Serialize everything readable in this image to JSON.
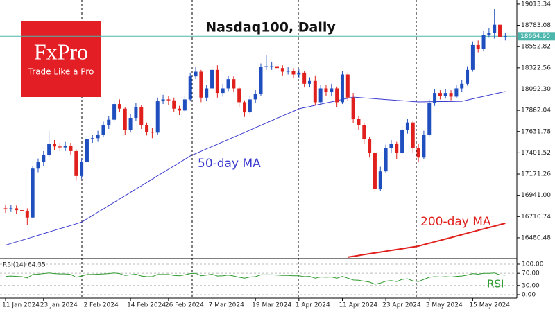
{
  "logo": {
    "name": "FxPro",
    "tagline": "Trade Like a Pro"
  },
  "chart_data": [
    {
      "type": "candlestick",
      "title": "Nasdaq100, Daily",
      "categories": [
        "11 Jan 2024",
        null,
        null,
        null,
        null,
        null,
        null,
        "23 Jan 2024",
        null,
        null,
        null,
        null,
        null,
        null,
        null,
        "2 Feb 2024",
        null,
        null,
        null,
        null,
        null,
        null,
        null,
        "14 Feb 2024",
        null,
        null,
        null,
        null,
        null,
        null,
        "26 Feb 2024",
        null,
        null,
        null,
        null,
        null,
        null,
        null,
        "7 Mar 2024",
        null,
        null,
        null,
        null,
        null,
        null,
        null,
        "19 Mar 2024",
        null,
        null,
        null,
        null,
        null,
        null,
        null,
        "1 Apr 2024",
        null,
        null,
        null,
        null,
        null,
        null,
        null,
        "11 Apr 2024",
        null,
        null,
        null,
        null,
        null,
        null,
        null,
        "23 Apr 2024",
        null,
        null,
        null,
        null,
        null,
        null,
        null,
        "3 May 2024",
        null,
        null,
        null,
        null,
        null,
        null,
        null,
        "15 May 2024",
        null,
        null,
        null,
        null,
        null,
        null
      ],
      "open": [
        16800,
        16790,
        16800,
        16780,
        16770,
        16700,
        17230,
        17300,
        17380,
        17500,
        17470,
        17460,
        17480,
        17420,
        17150,
        17300,
        17550,
        17560,
        17600,
        17700,
        17760,
        17930,
        17880,
        17650,
        17780,
        17900,
        17700,
        17630,
        17620,
        17960,
        17980,
        17970,
        17880,
        17860,
        17980,
        18230,
        18280,
        18000,
        18100,
        18300,
        18050,
        18100,
        18200,
        18100,
        17950,
        17840,
        17980,
        18040,
        18330,
        18340,
        18340,
        18320,
        18280,
        18290,
        18250,
        18270,
        18150,
        18180,
        17950,
        18100,
        18060,
        18100,
        17950,
        18250,
        18000,
        17770,
        17700,
        17550,
        17400,
        17010,
        17200,
        17450,
        17500,
        17400,
        17650,
        17730,
        17450,
        17350,
        17600,
        17940,
        18050,
        18020,
        18050,
        18010,
        18100,
        18150,
        18300,
        18570,
        18530,
        18680,
        18700,
        18790,
        18660
      ],
      "high": [
        16840,
        16840,
        16830,
        16820,
        16800,
        17260,
        17340,
        17420,
        17640,
        17540,
        17510,
        17520,
        17510,
        17440,
        17340,
        17590,
        17600,
        17640,
        17740,
        17800,
        17970,
        17980,
        17900,
        17820,
        17940,
        17920,
        17730,
        17670,
        18000,
        18030,
        18020,
        18000,
        17910,
        18020,
        18270,
        18330,
        18300,
        18140,
        18340,
        18350,
        18150,
        18240,
        18230,
        18120,
        17970,
        18020,
        18080,
        18370,
        18460,
        18390,
        18370,
        18350,
        18330,
        18320,
        18310,
        18290,
        18220,
        18240,
        18140,
        18140,
        18150,
        18120,
        18290,
        18270,
        18050,
        17800,
        17730,
        17570,
        17420,
        17250,
        17490,
        17540,
        17520,
        17690,
        17770,
        17750,
        17500,
        17640,
        17980,
        18090,
        18080,
        18090,
        18080,
        18140,
        18190,
        18340,
        18610,
        18620,
        18720,
        18750,
        18960,
        18810,
        18700
      ],
      "low": [
        16750,
        16760,
        16740,
        16720,
        16620,
        16690,
        17190,
        17260,
        17350,
        17430,
        17420,
        17420,
        17380,
        17100,
        17120,
        17280,
        17510,
        17520,
        17570,
        17660,
        17740,
        17840,
        17600,
        17620,
        17750,
        17660,
        17590,
        17560,
        17600,
        17930,
        17920,
        17840,
        17810,
        17840,
        17960,
        18200,
        17950,
        17960,
        18080,
        18000,
        18010,
        18070,
        18060,
        17900,
        17790,
        17820,
        17940,
        18020,
        18300,
        18300,
        18280,
        18240,
        18250,
        18210,
        18210,
        18110,
        18110,
        17920,
        17930,
        18020,
        18020,
        17900,
        17930,
        17960,
        17720,
        17650,
        17500,
        17350,
        16980,
        16990,
        17180,
        17400,
        17330,
        17380,
        17610,
        17400,
        17300,
        17330,
        17580,
        17910,
        17980,
        17990,
        17970,
        17990,
        18060,
        18130,
        18280,
        18490,
        18500,
        18650,
        18640,
        18570,
        18620
      ],
      "close": [
        16790,
        16800,
        16780,
        16770,
        16700,
        17230,
        17300,
        17380,
        17500,
        17470,
        17460,
        17480,
        17420,
        17150,
        17300,
        17550,
        17560,
        17600,
        17700,
        17760,
        17930,
        17880,
        17650,
        17780,
        17900,
        17700,
        17630,
        17620,
        17960,
        17980,
        17970,
        17880,
        17860,
        17980,
        18230,
        18280,
        18000,
        18100,
        18300,
        18050,
        18100,
        18200,
        18100,
        17950,
        17840,
        17980,
        18040,
        18330,
        18340,
        18340,
        18320,
        18280,
        18290,
        18250,
        18270,
        18150,
        18180,
        17950,
        18100,
        18060,
        18100,
        17950,
        18250,
        18000,
        17770,
        17700,
        17550,
        17400,
        17010,
        17200,
        17450,
        17500,
        17400,
        17650,
        17730,
        17450,
        17350,
        17600,
        17940,
        18050,
        18020,
        18050,
        18010,
        18100,
        18150,
        18300,
        18570,
        18530,
        18680,
        18700,
        18790,
        18660,
        18664.9
      ],
      "up_color": "#1f4fbf",
      "down_color": "#e0201c",
      "series": [
        {
          "name": "50-day MA",
          "color": "#3a3ad0",
          "values": [
            16400,
            16418,
            16436,
            16454,
            16471,
            16489,
            16507,
            16525,
            16543,
            16561,
            16579,
            16596,
            16614,
            16632,
            16650,
            16686,
            16722,
            16758,
            16793,
            16829,
            16865,
            16901,
            16937,
            16973,
            17009,
            17044,
            17080,
            17116,
            17152,
            17188,
            17224,
            17259,
            17295,
            17331,
            17367,
            17393,
            17418,
            17444,
            17469,
            17495,
            17520,
            17546,
            17571,
            17597,
            17622,
            17648,
            17674,
            17699,
            17725,
            17750,
            17776,
            17801,
            17827,
            17852,
            17878,
            17891,
            17903,
            17916,
            17929,
            17942,
            17954,
            17967,
            17980,
            17992,
            18005,
            18001,
            17996,
            17992,
            17988,
            17983,
            17979,
            17975,
            17970,
            17966,
            17962,
            17957,
            17953,
            17954,
            17955,
            17956,
            17957,
            17957,
            17958,
            17959,
            17960,
            17973,
            17987,
            18000,
            18013,
            18026,
            18040,
            18053,
            18066
          ]
        },
        {
          "name": "200-day MA",
          "color": "#e0201c",
          "values": [
            null,
            null,
            null,
            null,
            null,
            null,
            null,
            null,
            null,
            null,
            null,
            null,
            null,
            null,
            null,
            null,
            null,
            null,
            null,
            null,
            null,
            null,
            null,
            null,
            null,
            null,
            null,
            null,
            null,
            null,
            null,
            null,
            null,
            null,
            null,
            null,
            null,
            null,
            null,
            null,
            null,
            null,
            null,
            null,
            null,
            null,
            null,
            null,
            null,
            null,
            null,
            null,
            null,
            null,
            null,
            null,
            null,
            null,
            null,
            null,
            null,
            null,
            null,
            16270,
            16279,
            16288,
            16298,
            16307,
            16316,
            16325,
            16335,
            16344,
            16353,
            16362,
            16372,
            16381,
            16390,
            16406,
            16421,
            16437,
            16452,
            16468,
            16483,
            16499,
            16514,
            16530,
            16545,
            16561,
            16576,
            16592,
            16607,
            16623,
            16638
          ]
        }
      ],
      "last_price": {
        "value": 18664.9,
        "label": "18664.90"
      },
      "last_price_color": "#4db6ac",
      "ylim": [
        16262,
        19058
      ],
      "yticks": [
        19013.34,
        18783.08,
        18552.82,
        18322.56,
        {
          "value": 18092.3,
          "label": "18092.30"
        },
        17862.04,
        17631.78,
        17401.52,
        17171.26,
        {
          "value": 16941,
          "label": "16941.00"
        },
        16710.74,
        16480.48
      ]
    },
    {
      "type": "line",
      "title": "RSI(14) 64.35",
      "series": [
        {
          "name": "RSI",
          "color": "#2e9a2e",
          "values": [
            60,
            61,
            60,
            59,
            55,
            66,
            67,
            69,
            71,
            69,
            68,
            68,
            66,
            57,
            61,
            66,
            66,
            67,
            68,
            69,
            71,
            69,
            63,
            65,
            67,
            61,
            59,
            59,
            66,
            66,
            66,
            63,
            62,
            65,
            69,
            70,
            62,
            64,
            67,
            61,
            62,
            64,
            61,
            57,
            54,
            58,
            59,
            65,
            65,
            65,
            64,
            63,
            63,
            62,
            62,
            59,
            60,
            54,
            58,
            57,
            58,
            54,
            60,
            54,
            48,
            47,
            44,
            41,
            34,
            38,
            44,
            46,
            43,
            50,
            52,
            45,
            43,
            50,
            57,
            59,
            58,
            59,
            58,
            60,
            61,
            64,
            69,
            67,
            70,
            70,
            71,
            65,
            64.35
          ]
        }
      ],
      "ylim": [
        -11.4,
        113.6
      ],
      "yticks": [
        {
          "value": 100,
          "label": "100.00"
        },
        {
          "value": 70,
          "label": "70.00"
        },
        {
          "value": 30,
          "label": "30.00"
        },
        {
          "value": 0,
          "label": "0.00"
        }
      ]
    }
  ]
}
